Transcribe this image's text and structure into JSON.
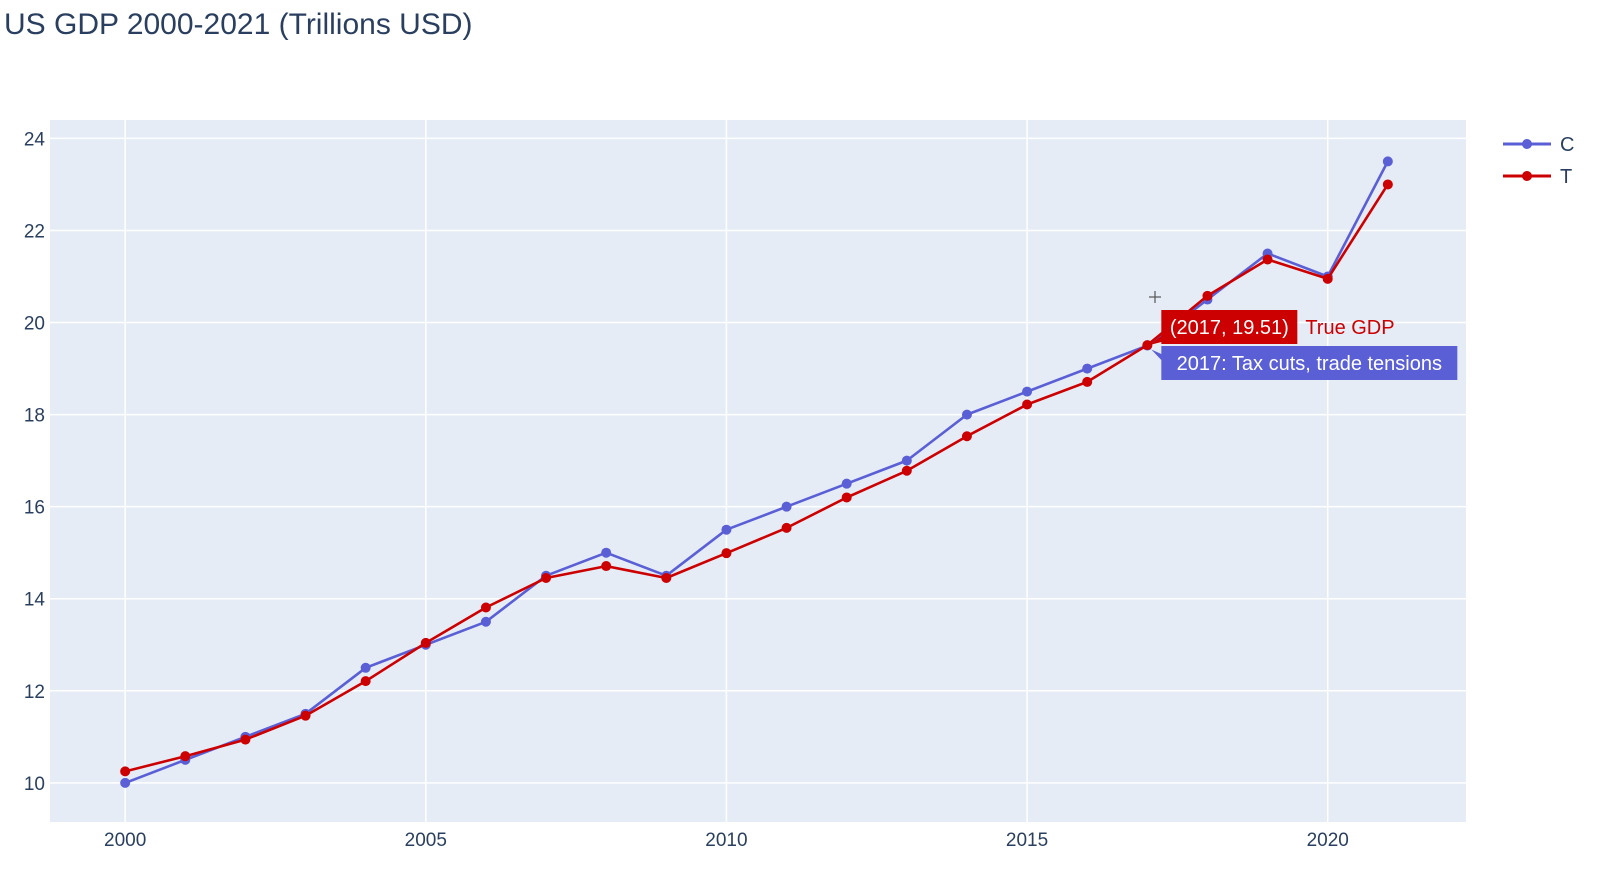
{
  "chart_data": {
    "type": "line",
    "title": "US GDP 2000-2021 (Trillions USD)",
    "xlabel": "",
    "ylabel": "",
    "xlim": [
      1998.75,
      2022.3
    ],
    "ylim": [
      9.15,
      24.4
    ],
    "x_ticks": [
      2000,
      2005,
      2010,
      2015,
      2020
    ],
    "y_ticks": [
      10,
      12,
      14,
      16,
      18,
      20,
      22,
      24
    ],
    "grid": true,
    "legend_position": "top-right (cropped)",
    "legend_visible_text": [
      "C",
      "T"
    ],
    "x": [
      2000,
      2001,
      2002,
      2003,
      2004,
      2005,
      2006,
      2007,
      2008,
      2009,
      2010,
      2011,
      2012,
      2013,
      2014,
      2015,
      2016,
      2017,
      2018,
      2019,
      2020,
      2021
    ],
    "series": [
      {
        "color": "#5a5fd6",
        "values": [
          10.0,
          10.5,
          11.0,
          11.5,
          12.5,
          13.0,
          13.5,
          14.5,
          15.0,
          14.5,
          15.5,
          16.0,
          16.5,
          17.0,
          18.0,
          18.5,
          19.0,
          19.5,
          20.5,
          21.5,
          21.0,
          23.5
        ]
      },
      {
        "name": "True GDP",
        "color": "#cc0000",
        "values": [
          10.25,
          10.58,
          10.94,
          11.46,
          12.21,
          13.04,
          13.81,
          14.45,
          14.71,
          14.45,
          14.99,
          15.54,
          16.2,
          16.78,
          17.53,
          18.22,
          18.71,
          19.51,
          20.58,
          21.37,
          20.95,
          23.0
        ]
      }
    ],
    "annotations": [
      {
        "hover_value": "(2017, 19.51)",
        "hover_label": "True GDP",
        "event_label": "2017: Tax cuts, trade tensions"
      }
    ]
  },
  "colors": {
    "plot_background": "#e5ecf6",
    "grid": "#ffffff",
    "text": "#2a3f5f"
  }
}
